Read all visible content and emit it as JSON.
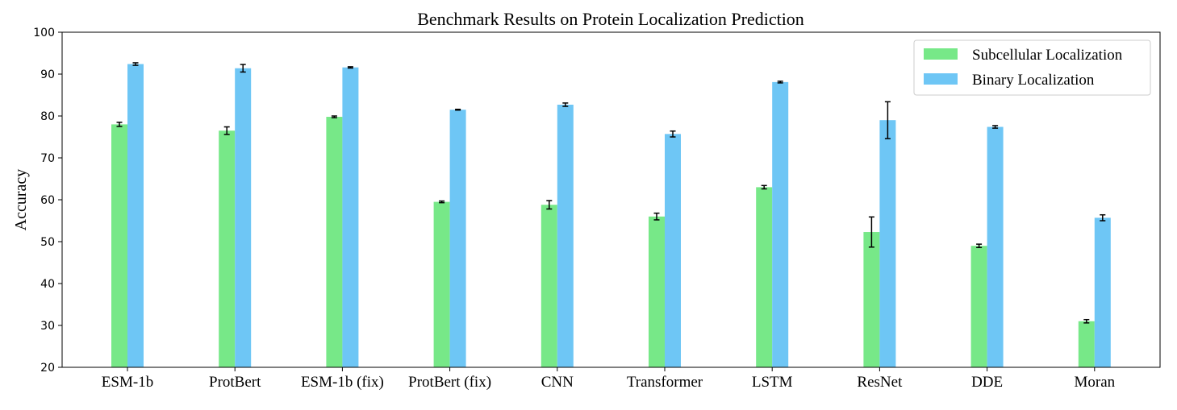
{
  "chart_data": {
    "type": "bar",
    "title": "Benchmark Results on Protein Localization Prediction",
    "xlabel": "",
    "ylabel": "Accuracy",
    "ylim": [
      20,
      100
    ],
    "yticks": [
      20,
      30,
      40,
      50,
      60,
      70,
      80,
      90,
      100
    ],
    "grid": false,
    "legend_position": "top-right",
    "categories": [
      "ESM-1b",
      "ProtBert",
      "ESM-1b (fix)",
      "ProtBert (fix)",
      "CNN",
      "Transformer",
      "LSTM",
      "ResNet",
      "DDE",
      "Moran"
    ],
    "series": [
      {
        "name": "Subcellular Localization",
        "color": "#77e888",
        "values": [
          78.0,
          76.5,
          79.8,
          59.5,
          58.8,
          56.0,
          63.0,
          52.3,
          49.0,
          31.0
        ],
        "errors": [
          0.5,
          0.9,
          0.2,
          0.2,
          1.0,
          0.8,
          0.4,
          3.6,
          0.4,
          0.4
        ]
      },
      {
        "name": "Binary Localization",
        "color": "#6ec6f5",
        "values": [
          92.4,
          91.4,
          91.6,
          81.5,
          82.7,
          75.7,
          88.1,
          79.0,
          77.4,
          55.7
        ],
        "errors": [
          0.3,
          0.9,
          0.15,
          0.1,
          0.4,
          0.7,
          0.2,
          4.4,
          0.3,
          0.7
        ]
      }
    ]
  }
}
